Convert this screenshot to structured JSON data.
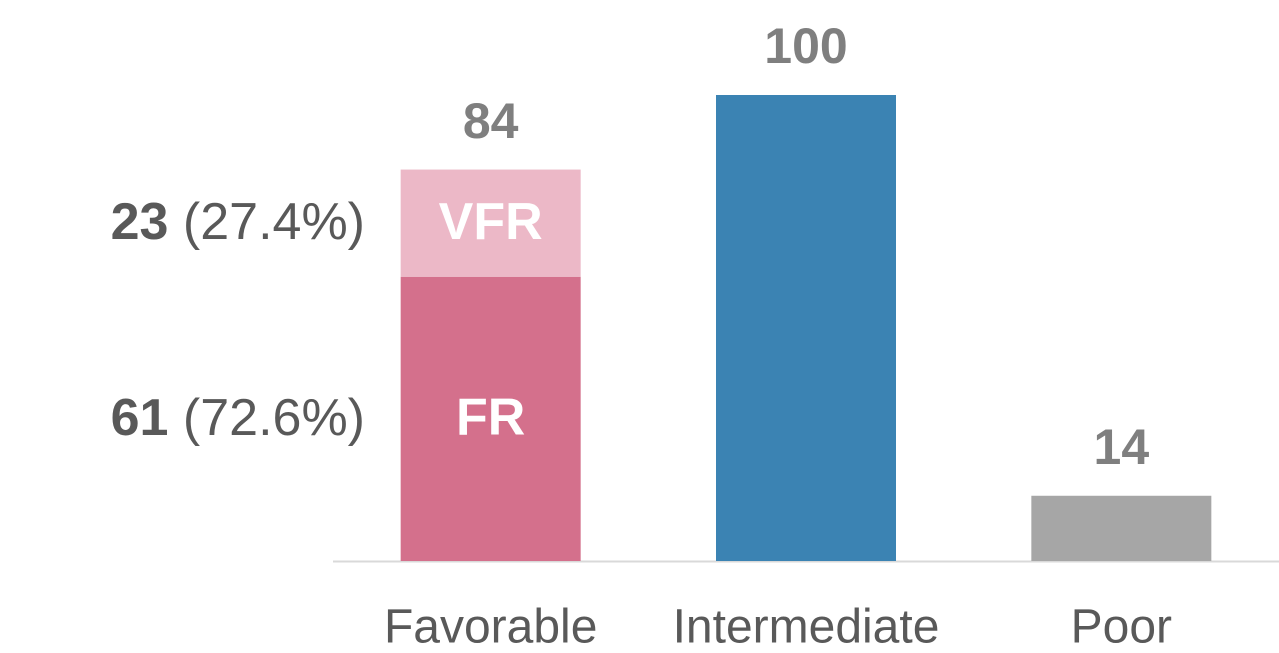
{
  "chart_data": {
    "type": "bar",
    "categories": [
      "Favorable",
      "Intermediate",
      "Poor"
    ],
    "values": [
      84,
      100,
      14
    ],
    "colors": [
      "#d4708c",
      "#3b83b3",
      "#a6a6a6"
    ],
    "ylim": [
      0,
      100
    ],
    "segments": [
      {
        "name": "FR",
        "value": 61,
        "share": 72.6,
        "share_label": "(72.6%)",
        "color": "#d4708c"
      },
      {
        "name": "VFR",
        "value": 23,
        "share": 27.4,
        "share_label": "(27.4%)",
        "color": "#ecb8c7"
      }
    ]
  }
}
